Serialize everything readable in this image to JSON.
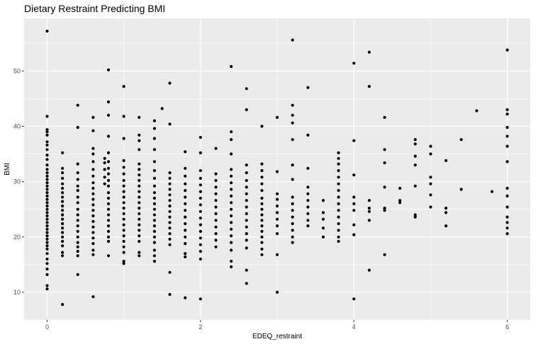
{
  "chart_data": {
    "type": "scatter",
    "title": "Dietary Restraint Predicting BMI",
    "xlabel": "EDEQ_restraint",
    "ylabel": "BMI",
    "xlim": [
      -0.3,
      6.3
    ],
    "ylim": [
      5,
      59.5
    ],
    "x_ticks": [
      0,
      2,
      4,
      6
    ],
    "y_ticks": [
      10,
      20,
      30,
      40,
      50
    ],
    "grid": true,
    "panel_background": "#ebebeb",
    "grid_color": "#ffffff",
    "point_color": "#000000",
    "points": [
      [
        0,
        57.2
      ],
      [
        0,
        41.8
      ],
      [
        0,
        39.4
      ],
      [
        0,
        39.0
      ],
      [
        0,
        38.4
      ],
      [
        0,
        37.2
      ],
      [
        0,
        36.6
      ],
      [
        0,
        35.8
      ],
      [
        0,
        34.8
      ],
      [
        0,
        34.0
      ],
      [
        0,
        33.0
      ],
      [
        0,
        32.2
      ],
      [
        0,
        31.6
      ],
      [
        0,
        31.0
      ],
      [
        0,
        30.4
      ],
      [
        0,
        29.8
      ],
      [
        0,
        29.2
      ],
      [
        0,
        28.6
      ],
      [
        0,
        28.0
      ],
      [
        0,
        27.4
      ],
      [
        0,
        26.8
      ],
      [
        0,
        26.2
      ],
      [
        0,
        25.6
      ],
      [
        0,
        25.0
      ],
      [
        0,
        24.4
      ],
      [
        0,
        23.8
      ],
      [
        0,
        23.2
      ],
      [
        0,
        22.6
      ],
      [
        0,
        22.0
      ],
      [
        0,
        21.4
      ],
      [
        0,
        20.8
      ],
      [
        0,
        20.2
      ],
      [
        0,
        19.6
      ],
      [
        0,
        19.0
      ],
      [
        0,
        18.4
      ],
      [
        0,
        17.8
      ],
      [
        0,
        17.0
      ],
      [
        0,
        16.0
      ],
      [
        0,
        15.2
      ],
      [
        0,
        14.2
      ],
      [
        0,
        13.2
      ],
      [
        0,
        11.2
      ],
      [
        0,
        10.6
      ],
      [
        0.2,
        35.2
      ],
      [
        0.2,
        32.4
      ],
      [
        0.2,
        31.6
      ],
      [
        0.2,
        30.6
      ],
      [
        0.2,
        29.6
      ],
      [
        0.2,
        28.8
      ],
      [
        0.2,
        28.0
      ],
      [
        0.2,
        27.2
      ],
      [
        0.2,
        26.4
      ],
      [
        0.2,
        25.6
      ],
      [
        0.2,
        24.8
      ],
      [
        0.2,
        24.0
      ],
      [
        0.2,
        23.2
      ],
      [
        0.2,
        22.4
      ],
      [
        0.2,
        21.6
      ],
      [
        0.2,
        20.8
      ],
      [
        0.2,
        20.0
      ],
      [
        0.2,
        19.2
      ],
      [
        0.2,
        18.4
      ],
      [
        0.2,
        17.2
      ],
      [
        0.2,
        16.6
      ],
      [
        0.2,
        7.8
      ],
      [
        0.4,
        43.8
      ],
      [
        0.4,
        39.8
      ],
      [
        0.4,
        33.2
      ],
      [
        0.4,
        31.6
      ],
      [
        0.4,
        30.4
      ],
      [
        0.4,
        29.2
      ],
      [
        0.4,
        28.4
      ],
      [
        0.4,
        27.2
      ],
      [
        0.4,
        26.2
      ],
      [
        0.4,
        25.0
      ],
      [
        0.4,
        24.0
      ],
      [
        0.4,
        23.0
      ],
      [
        0.4,
        22.0
      ],
      [
        0.4,
        21.0
      ],
      [
        0.4,
        20.0
      ],
      [
        0.4,
        19.0
      ],
      [
        0.4,
        18.2
      ],
      [
        0.4,
        17.4
      ],
      [
        0.4,
        16.6
      ],
      [
        0.4,
        13.2
      ],
      [
        0.6,
        41.6
      ],
      [
        0.6,
        39.2
      ],
      [
        0.6,
        36.0
      ],
      [
        0.6,
        35.0
      ],
      [
        0.6,
        33.6
      ],
      [
        0.6,
        32.2
      ],
      [
        0.6,
        31.0
      ],
      [
        0.6,
        29.8
      ],
      [
        0.6,
        28.8
      ],
      [
        0.6,
        27.8
      ],
      [
        0.6,
        26.8
      ],
      [
        0.6,
        25.8
      ],
      [
        0.6,
        24.8
      ],
      [
        0.6,
        23.8
      ],
      [
        0.6,
        22.8
      ],
      [
        0.6,
        21.8
      ],
      [
        0.6,
        20.8
      ],
      [
        0.6,
        19.8
      ],
      [
        0.6,
        18.8
      ],
      [
        0.6,
        17.6
      ],
      [
        0.6,
        16.8
      ],
      [
        0.6,
        9.2
      ],
      [
        0.75,
        34.2
      ],
      [
        0.75,
        33.4
      ],
      [
        0.75,
        32.2
      ],
      [
        0.75,
        30.8
      ],
      [
        0.75,
        29.6
      ],
      [
        0.8,
        50.2
      ],
      [
        0.8,
        44.4
      ],
      [
        0.8,
        42.0
      ],
      [
        0.8,
        38.2
      ],
      [
        0.8,
        35.2
      ],
      [
        0.8,
        33.6
      ],
      [
        0.8,
        32.4
      ],
      [
        0.8,
        31.4
      ],
      [
        0.8,
        30.2
      ],
      [
        0.8,
        29.2
      ],
      [
        0.8,
        28.0
      ],
      [
        0.8,
        27.0
      ],
      [
        0.8,
        26.0
      ],
      [
        0.8,
        25.0
      ],
      [
        0.8,
        24.0
      ],
      [
        0.8,
        23.0
      ],
      [
        0.8,
        22.0
      ],
      [
        0.8,
        21.0
      ],
      [
        0.8,
        20.0
      ],
      [
        0.8,
        19.2
      ],
      [
        0.8,
        16.6
      ],
      [
        1.0,
        47.2
      ],
      [
        1.0,
        41.8
      ],
      [
        1.0,
        37.8
      ],
      [
        1.0,
        33.8
      ],
      [
        1.0,
        32.6
      ],
      [
        1.0,
        31.4
      ],
      [
        1.0,
        30.2
      ],
      [
        1.0,
        29.2
      ],
      [
        1.0,
        28.2
      ],
      [
        1.0,
        27.2
      ],
      [
        1.0,
        26.2
      ],
      [
        1.0,
        25.2
      ],
      [
        1.0,
        24.2
      ],
      [
        1.0,
        23.2
      ],
      [
        1.0,
        22.2
      ],
      [
        1.0,
        21.2
      ],
      [
        1.0,
        20.2
      ],
      [
        1.0,
        19.2
      ],
      [
        1.0,
        18.2
      ],
      [
        1.0,
        17.2
      ],
      [
        1.0,
        15.6
      ],
      [
        1.0,
        15.2
      ],
      [
        1.2,
        41.6
      ],
      [
        1.2,
        38.4
      ],
      [
        1.2,
        37.4
      ],
      [
        1.2,
        35.8
      ],
      [
        1.2,
        33.2
      ],
      [
        1.2,
        32.2
      ],
      [
        1.2,
        31.2
      ],
      [
        1.2,
        30.2
      ],
      [
        1.2,
        29.2
      ],
      [
        1.2,
        28.2
      ],
      [
        1.2,
        27.2
      ],
      [
        1.2,
        26.2
      ],
      [
        1.2,
        25.2
      ],
      [
        1.2,
        24.2
      ],
      [
        1.2,
        23.2
      ],
      [
        1.2,
        22.2
      ],
      [
        1.2,
        21.2
      ],
      [
        1.2,
        20.2
      ],
      [
        1.2,
        19.2
      ],
      [
        1.2,
        17.2
      ],
      [
        1.2,
        16.6
      ],
      [
        1.4,
        41.0
      ],
      [
        1.4,
        39.6
      ],
      [
        1.4,
        37.8
      ],
      [
        1.4,
        35.8
      ],
      [
        1.4,
        33.6
      ],
      [
        1.4,
        32.0
      ],
      [
        1.4,
        30.6
      ],
      [
        1.4,
        29.2
      ],
      [
        1.4,
        28.0
      ],
      [
        1.4,
        27.0
      ],
      [
        1.4,
        26.0
      ],
      [
        1.4,
        25.0
      ],
      [
        1.4,
        24.0
      ],
      [
        1.4,
        23.0
      ],
      [
        1.4,
        22.0
      ],
      [
        1.4,
        21.0
      ],
      [
        1.4,
        20.0
      ],
      [
        1.4,
        19.0
      ],
      [
        1.4,
        17.6
      ],
      [
        1.4,
        16.6
      ],
      [
        1.4,
        15.6
      ],
      [
        1.5,
        43.2
      ],
      [
        1.6,
        47.8
      ],
      [
        1.6,
        40.4
      ],
      [
        1.6,
        31.6
      ],
      [
        1.6,
        30.6
      ],
      [
        1.6,
        29.6
      ],
      [
        1.6,
        28.6
      ],
      [
        1.6,
        27.6
      ],
      [
        1.6,
        26.6
      ],
      [
        1.6,
        25.6
      ],
      [
        1.6,
        24.6
      ],
      [
        1.6,
        23.6
      ],
      [
        1.6,
        22.6
      ],
      [
        1.6,
        21.6
      ],
      [
        1.6,
        20.6
      ],
      [
        1.6,
        19.6
      ],
      [
        1.6,
        18.6
      ],
      [
        1.6,
        13.6
      ],
      [
        1.6,
        9.6
      ],
      [
        1.8,
        35.4
      ],
      [
        1.8,
        32.4
      ],
      [
        1.8,
        31.0
      ],
      [
        1.8,
        29.6
      ],
      [
        1.8,
        28.4
      ],
      [
        1.8,
        27.2
      ],
      [
        1.8,
        26.0
      ],
      [
        1.8,
        24.8
      ],
      [
        1.8,
        23.6
      ],
      [
        1.8,
        22.4
      ],
      [
        1.8,
        21.2
      ],
      [
        1.8,
        20.0
      ],
      [
        1.8,
        18.8
      ],
      [
        1.8,
        17.0
      ],
      [
        1.8,
        16.4
      ],
      [
        1.8,
        9.0
      ],
      [
        2.0,
        38.0
      ],
      [
        2.0,
        35.2
      ],
      [
        2.0,
        32.0
      ],
      [
        2.0,
        30.6
      ],
      [
        2.0,
        29.4
      ],
      [
        2.0,
        28.2
      ],
      [
        2.0,
        27.0
      ],
      [
        2.0,
        25.8
      ],
      [
        2.0,
        24.6
      ],
      [
        2.0,
        23.4
      ],
      [
        2.0,
        22.2
      ],
      [
        2.0,
        21.0
      ],
      [
        2.0,
        19.8
      ],
      [
        2.0,
        18.6
      ],
      [
        2.0,
        17.4
      ],
      [
        2.0,
        16.0
      ],
      [
        2.0,
        8.8
      ],
      [
        2.2,
        36.0
      ],
      [
        2.2,
        31.4
      ],
      [
        2.2,
        30.2
      ],
      [
        2.2,
        29.0
      ],
      [
        2.2,
        27.8
      ],
      [
        2.2,
        26.6
      ],
      [
        2.2,
        25.4
      ],
      [
        2.2,
        24.2
      ],
      [
        2.2,
        23.0
      ],
      [
        2.2,
        21.8
      ],
      [
        2.2,
        20.6
      ],
      [
        2.2,
        19.4
      ],
      [
        2.2,
        18.2
      ],
      [
        2.4,
        50.8
      ],
      [
        2.4,
        39.0
      ],
      [
        2.4,
        37.6
      ],
      [
        2.4,
        35.0
      ],
      [
        2.4,
        32.2
      ],
      [
        2.4,
        31.0
      ],
      [
        2.4,
        29.8
      ],
      [
        2.4,
        28.6
      ],
      [
        2.4,
        27.4
      ],
      [
        2.4,
        26.2
      ],
      [
        2.4,
        25.0
      ],
      [
        2.4,
        23.8
      ],
      [
        2.4,
        22.6
      ],
      [
        2.4,
        21.4
      ],
      [
        2.4,
        20.2
      ],
      [
        2.4,
        19.0
      ],
      [
        2.4,
        17.6
      ],
      [
        2.4,
        15.6
      ],
      [
        2.4,
        14.6
      ],
      [
        2.6,
        46.8
      ],
      [
        2.6,
        43.0
      ],
      [
        2.6,
        33.0
      ],
      [
        2.6,
        31.6
      ],
      [
        2.6,
        30.2
      ],
      [
        2.6,
        29.0
      ],
      [
        2.6,
        27.8
      ],
      [
        2.6,
        26.6
      ],
      [
        2.6,
        25.4
      ],
      [
        2.6,
        24.2
      ],
      [
        2.6,
        23.0
      ],
      [
        2.6,
        21.8
      ],
      [
        2.6,
        20.6
      ],
      [
        2.6,
        19.4
      ],
      [
        2.6,
        18.0
      ],
      [
        2.6,
        14.0
      ],
      [
        2.6,
        11.6
      ],
      [
        2.8,
        40.0
      ],
      [
        2.8,
        33.2
      ],
      [
        2.8,
        32.0
      ],
      [
        2.8,
        30.8
      ],
      [
        2.8,
        29.6
      ],
      [
        2.8,
        28.4
      ],
      [
        2.8,
        27.0
      ],
      [
        2.8,
        26.0
      ],
      [
        2.8,
        25.0
      ],
      [
        2.8,
        24.0
      ],
      [
        2.8,
        23.0
      ],
      [
        2.8,
        22.0
      ],
      [
        2.8,
        21.0
      ],
      [
        2.8,
        20.0
      ],
      [
        2.8,
        19.0
      ],
      [
        2.8,
        17.8
      ],
      [
        2.8,
        16.8
      ],
      [
        3.0,
        41.6
      ],
      [
        3.0,
        31.8
      ],
      [
        3.0,
        27.8
      ],
      [
        3.0,
        26.8
      ],
      [
        3.0,
        25.6
      ],
      [
        3.0,
        24.4
      ],
      [
        3.0,
        23.2
      ],
      [
        3.0,
        22.0
      ],
      [
        3.0,
        20.6
      ],
      [
        3.0,
        16.8
      ],
      [
        3.0,
        10.0
      ],
      [
        3.2,
        55.6
      ],
      [
        3.2,
        43.8
      ],
      [
        3.2,
        42.0
      ],
      [
        3.2,
        40.6
      ],
      [
        3.2,
        37.6
      ],
      [
        3.2,
        33.0
      ],
      [
        3.2,
        30.4
      ],
      [
        3.2,
        27.2
      ],
      [
        3.2,
        26.0
      ],
      [
        3.2,
        24.8
      ],
      [
        3.2,
        23.6
      ],
      [
        3.2,
        22.4
      ],
      [
        3.2,
        21.2
      ],
      [
        3.2,
        20.0
      ],
      [
        3.2,
        19.0
      ],
      [
        3.4,
        47.0
      ],
      [
        3.4,
        38.4
      ],
      [
        3.4,
        32.4
      ],
      [
        3.4,
        29.0
      ],
      [
        3.4,
        27.8
      ],
      [
        3.4,
        26.6
      ],
      [
        3.4,
        25.4
      ],
      [
        3.4,
        24.2
      ],
      [
        3.4,
        23.0
      ],
      [
        3.4,
        22.0
      ],
      [
        3.6,
        26.6
      ],
      [
        3.6,
        24.4
      ],
      [
        3.6,
        23.2
      ],
      [
        3.6,
        21.6
      ],
      [
        3.6,
        20.0
      ],
      [
        3.8,
        35.2
      ],
      [
        3.8,
        34.2
      ],
      [
        3.8,
        33.2
      ],
      [
        3.8,
        32.0
      ],
      [
        3.8,
        30.8
      ],
      [
        3.8,
        29.6
      ],
      [
        3.8,
        28.4
      ],
      [
        3.8,
        27.2
      ],
      [
        3.8,
        26.0
      ],
      [
        3.8,
        24.8
      ],
      [
        3.8,
        23.6
      ],
      [
        3.8,
        22.4
      ],
      [
        3.8,
        21.2
      ],
      [
        3.8,
        20.0
      ],
      [
        3.8,
        19.2
      ],
      [
        4.0,
        51.4
      ],
      [
        4.0,
        37.4
      ],
      [
        4.0,
        31.2
      ],
      [
        4.0,
        27.2
      ],
      [
        4.0,
        26.0
      ],
      [
        4.0,
        24.8
      ],
      [
        4.0,
        22.2
      ],
      [
        4.0,
        20.4
      ],
      [
        4.0,
        8.8
      ],
      [
        4.2,
        53.4
      ],
      [
        4.2,
        47.2
      ],
      [
        4.2,
        26.6
      ],
      [
        4.2,
        25.2
      ],
      [
        4.2,
        24.6
      ],
      [
        4.2,
        23.0
      ],
      [
        4.2,
        14.0
      ],
      [
        4.4,
        41.6
      ],
      [
        4.4,
        35.8
      ],
      [
        4.4,
        33.4
      ],
      [
        4.4,
        29.0
      ],
      [
        4.4,
        25.2
      ],
      [
        4.4,
        24.8
      ],
      [
        4.4,
        16.8
      ],
      [
        4.6,
        28.8
      ],
      [
        4.6,
        26.6
      ],
      [
        4.6,
        26.2
      ],
      [
        4.8,
        37.6
      ],
      [
        4.8,
        36.8
      ],
      [
        4.8,
        34.6
      ],
      [
        4.8,
        33.0
      ],
      [
        4.8,
        29.2
      ],
      [
        4.8,
        24.0
      ],
      [
        4.8,
        23.6
      ],
      [
        5.0,
        36.4
      ],
      [
        5.0,
        35.0
      ],
      [
        5.0,
        30.8
      ],
      [
        5.0,
        29.6
      ],
      [
        5.0,
        27.6
      ],
      [
        5.0,
        25.4
      ],
      [
        5.2,
        33.8
      ],
      [
        5.2,
        25.2
      ],
      [
        5.2,
        24.4
      ],
      [
        5.2,
        22.0
      ],
      [
        5.4,
        37.6
      ],
      [
        5.4,
        28.6
      ],
      [
        5.6,
        42.8
      ],
      [
        5.8,
        28.2
      ],
      [
        6.0,
        53.8
      ],
      [
        6.0,
        43.0
      ],
      [
        6.0,
        42.2
      ],
      [
        6.0,
        39.8
      ],
      [
        6.0,
        38.2
      ],
      [
        6.0,
        36.4
      ],
      [
        6.0,
        33.6
      ],
      [
        6.0,
        28.8
      ],
      [
        6.0,
        27.4
      ],
      [
        6.0,
        25.4
      ],
      [
        6.0,
        23.6
      ],
      [
        6.0,
        22.6
      ],
      [
        6.0,
        21.6
      ],
      [
        6.0,
        20.6
      ]
    ]
  }
}
